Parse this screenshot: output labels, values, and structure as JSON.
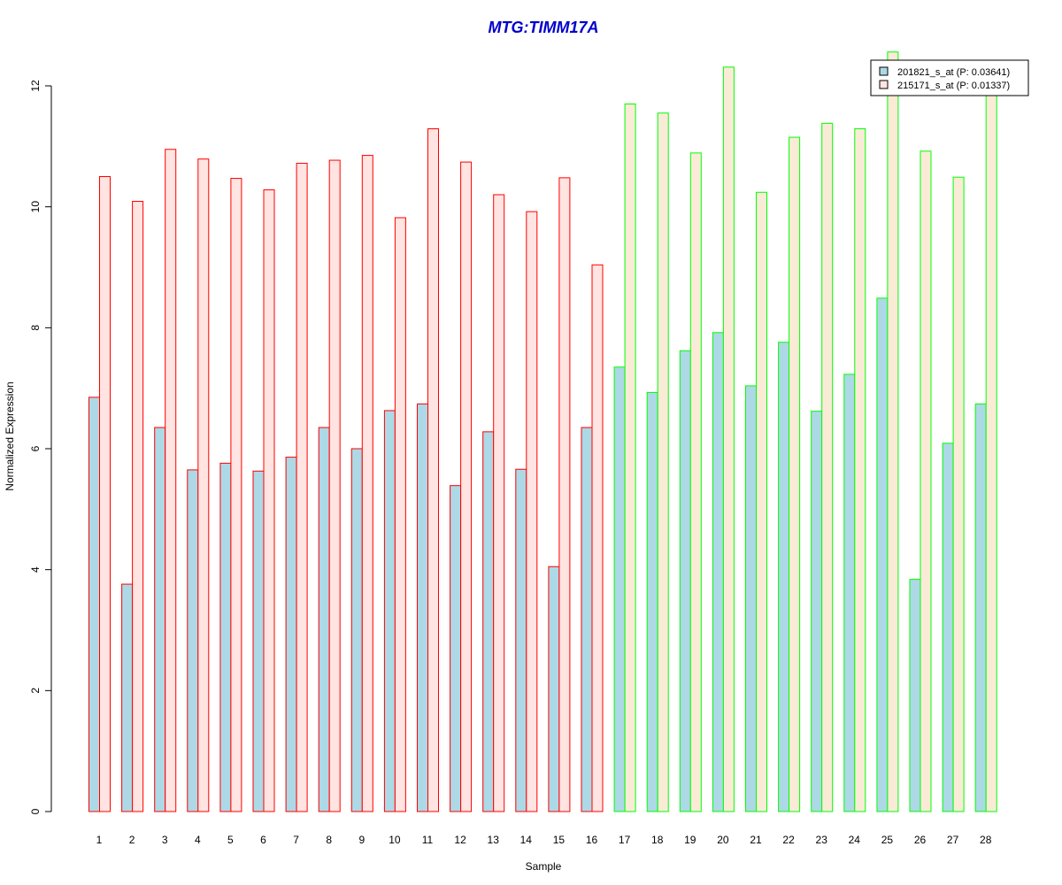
{
  "chart_data": {
    "type": "bar",
    "title": "MTG:TIMM17A",
    "xlabel": "Sample",
    "ylabel": "Normalized Expression",
    "ylim": [
      0,
      12.6
    ],
    "yticks": [
      0,
      2,
      4,
      6,
      8,
      10,
      12
    ],
    "categories": [
      "1",
      "2",
      "3",
      "4",
      "5",
      "6",
      "7",
      "8",
      "9",
      "10",
      "11",
      "12",
      "13",
      "14",
      "15",
      "16",
      "17",
      "18",
      "19",
      "20",
      "21",
      "22",
      "23",
      "24",
      "25",
      "26",
      "27",
      "28"
    ],
    "group_border_colors": {
      "group1": {
        "samples": "1-16",
        "color": "#ff0000"
      },
      "group2": {
        "samples": "17-28",
        "color": "#00ff00"
      }
    },
    "series": [
      {
        "name": "201821_s_at (P: 0.03641)",
        "fill": "#add8e6",
        "values": [
          6.85,
          3.76,
          6.35,
          5.65,
          5.76,
          5.63,
          5.86,
          6.35,
          6.0,
          6.63,
          6.74,
          5.39,
          6.28,
          5.66,
          4.05,
          6.35,
          7.35,
          6.93,
          7.62,
          7.92,
          7.04,
          7.76,
          6.62,
          7.23,
          8.49,
          3.84,
          6.09,
          6.74
        ]
      },
      {
        "name": "215171_s_at (P: 0.01337)",
        "fill_group1": "#ffe4e1",
        "fill_group2": "#faebd7",
        "values": [
          10.5,
          10.09,
          10.95,
          10.79,
          10.47,
          10.28,
          10.72,
          10.77,
          10.85,
          9.82,
          11.29,
          10.74,
          10.2,
          9.92,
          10.48,
          9.04,
          11.7,
          11.55,
          10.89,
          12.31,
          10.24,
          11.15,
          11.38,
          11.29,
          12.56,
          10.92,
          10.49,
          11.9
        ]
      }
    ],
    "legend_position": "top-right",
    "grid": false
  }
}
